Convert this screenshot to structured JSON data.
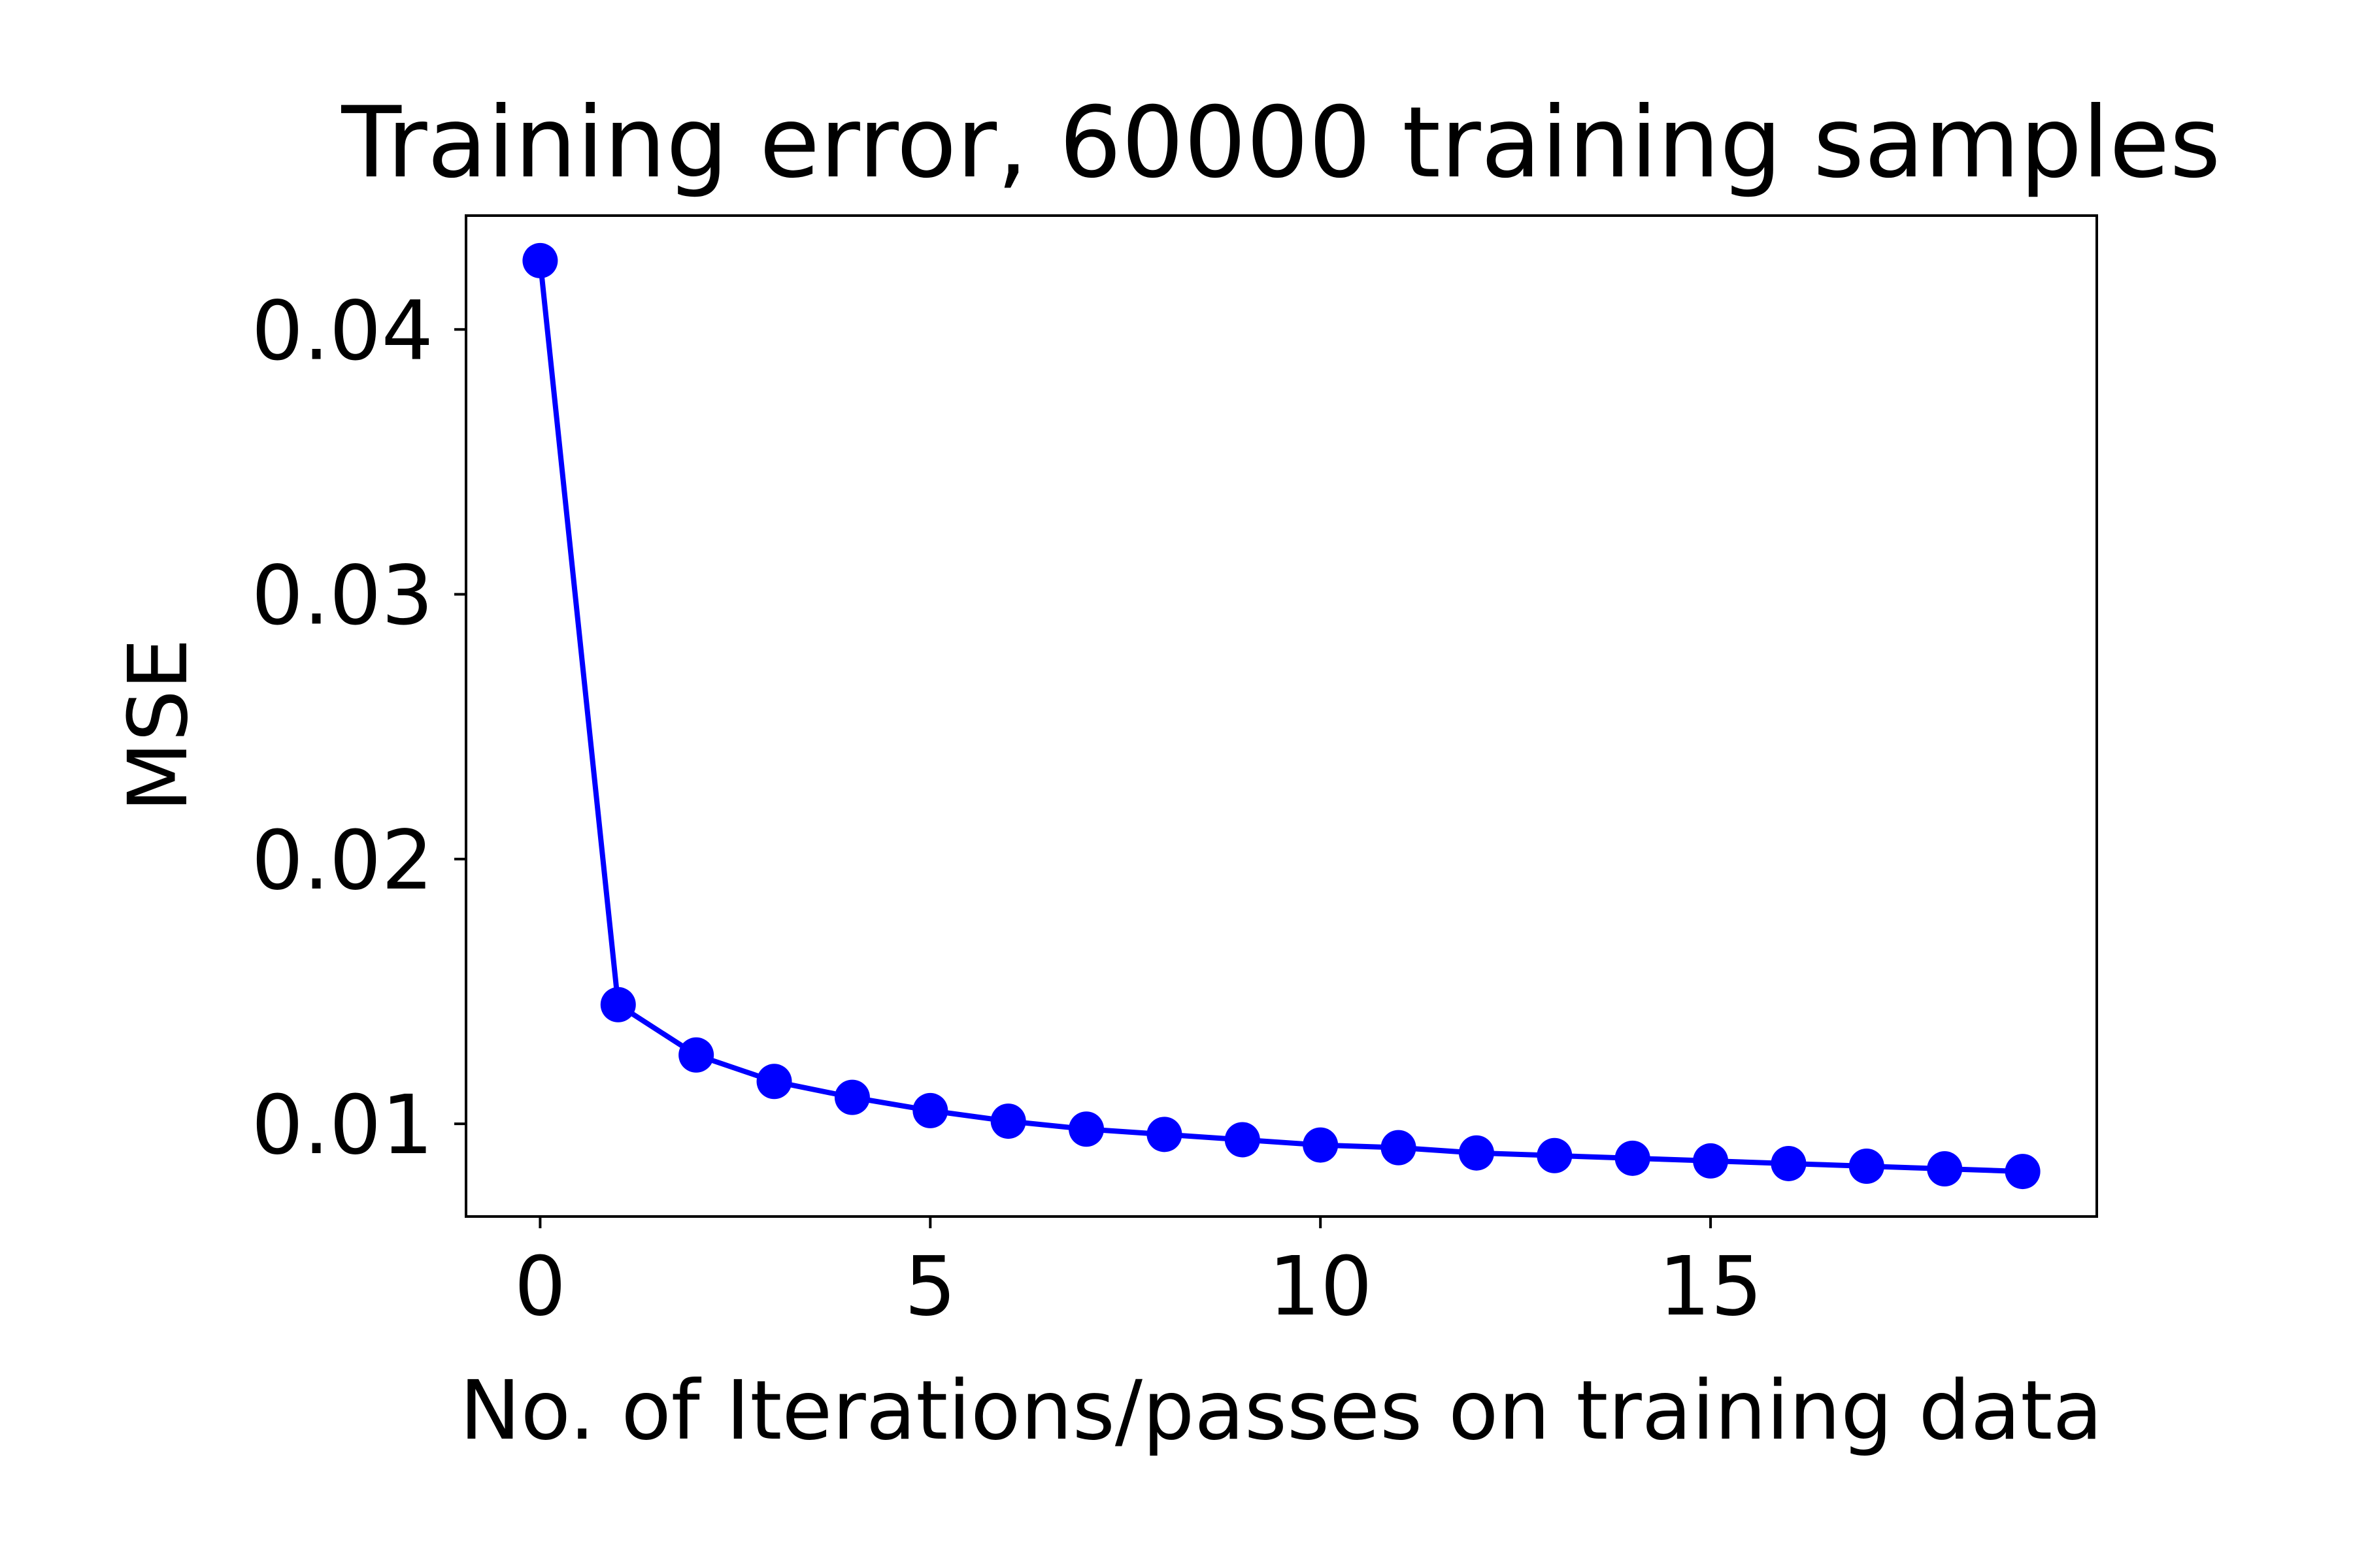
{
  "chart_data": {
    "type": "line",
    "title": "Training error, 60000 training samples",
    "xlabel": "No. of Iterations/passes on training data",
    "ylabel": "MSE",
    "xlim": [
      -0.95,
      19.95
    ],
    "ylim": [
      0.0065,
      0.0443
    ],
    "x_ticks": [
      0,
      5,
      10,
      15
    ],
    "x_tick_labels": [
      "0",
      "5",
      "10",
      "15"
    ],
    "y_ticks": [
      0.01,
      0.02,
      0.03,
      0.04
    ],
    "y_tick_labels": [
      "0.01",
      "0.02",
      "0.03",
      "0.04"
    ],
    "grid": false,
    "series": [
      {
        "color": "#0000ff",
        "marker": "circle",
        "x": [
          0,
          1,
          2,
          3,
          4,
          5,
          6,
          7,
          8,
          9,
          10,
          11,
          12,
          13,
          14,
          15,
          16,
          17,
          18,
          19
        ],
        "values": [
          0.0426,
          0.0145,
          0.0126,
          0.0116,
          0.011,
          0.0105,
          0.0101,
          0.0098,
          0.0096,
          0.0094,
          0.0092,
          0.0091,
          0.0089,
          0.0088,
          0.0087,
          0.0086,
          0.0085,
          0.0084,
          0.0083,
          0.0082
        ]
      }
    ]
  }
}
